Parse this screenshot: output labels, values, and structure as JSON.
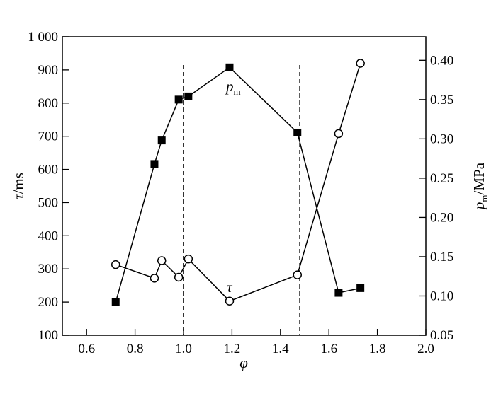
{
  "chart_data": {
    "type": "line",
    "x_axis": {
      "range": [
        0.5,
        2.0
      ],
      "ticks": [
        "0.6",
        "0.8",
        "1.0",
        "1.2",
        "1.4",
        "1.6",
        "1.8",
        "2.0"
      ],
      "label": "φ"
    },
    "y_left": {
      "range": [
        100,
        1000
      ],
      "ticks": [
        "100",
        "200",
        "300",
        "400",
        "500",
        "600",
        "700",
        "800",
        "900",
        "1 000"
      ],
      "label_main": "τ",
      "label_unit": "/ms"
    },
    "y_right": {
      "range": [
        0.05,
        0.43
      ],
      "ticks": [
        "0.05",
        "0.10",
        "0.15",
        "0.20",
        "0.25",
        "0.30",
        "0.35",
        "0.40"
      ],
      "label_main": "p",
      "label_sub": "m",
      "label_unit": "/MPa"
    },
    "series": [
      {
        "name": "τ",
        "axis": "left",
        "marker": "open-circle",
        "color": "#000000",
        "points": [
          [
            0.72,
            313
          ],
          [
            0.88,
            272
          ],
          [
            0.91,
            325
          ],
          [
            0.98,
            275
          ],
          [
            1.02,
            330
          ],
          [
            1.19,
            203
          ],
          [
            1.47,
            282
          ],
          [
            1.64,
            708
          ],
          [
            1.73,
            920
          ]
        ]
      },
      {
        "name": "p",
        "name_sub": "m",
        "axis": "right",
        "marker": "filled-square",
        "color": "#000000",
        "points": [
          [
            0.72,
            0.092
          ],
          [
            0.88,
            0.268
          ],
          [
            0.91,
            0.298
          ],
          [
            0.98,
            0.35
          ],
          [
            1.02,
            0.354
          ],
          [
            1.19,
            0.391
          ],
          [
            1.47,
            0.308
          ],
          [
            1.64,
            0.104
          ],
          [
            1.73,
            0.11
          ]
        ]
      }
    ],
    "reference_lines_x": [
      1.0,
      1.48
    ],
    "grid": false,
    "legend": "none"
  }
}
